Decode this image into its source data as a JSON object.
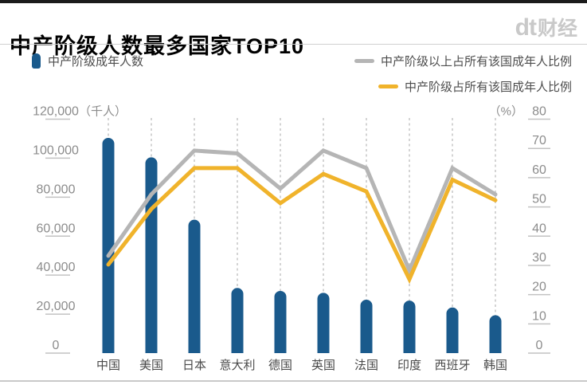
{
  "page": {
    "background": "#ffffff",
    "top_bar_color": "#1b1b1b"
  },
  "header": {
    "title": "中产阶级人数最多国家TOP10",
    "logo_dt": "dt",
    "logo_cn": "财经",
    "logo_color": "#c9c9c9"
  },
  "legend": {
    "bar_item": {
      "label": "中产阶级成年人数",
      "color": "#1a5a8c"
    },
    "line_items": [
      {
        "label": "中产阶级以上占所有该国成年人比例",
        "color": "#b5b5b5"
      },
      {
        "label": "中产阶级占所有该国成年人比例",
        "color": "#f0b32b"
      }
    ]
  },
  "chart_data": {
    "type": "bar",
    "title": "中产阶级人数最多国家TOP10",
    "categories": [
      "中国",
      "美国",
      "日本",
      "意大利",
      "德国",
      "英国",
      "法国",
      "印度",
      "西班牙",
      "韩国"
    ],
    "series": [
      {
        "name": "中产阶级成年人数",
        "type": "bar",
        "axis": "left",
        "unit": "千人",
        "color": "#1a5a8c",
        "values": [
          110000,
          100000,
          68000,
          33000,
          31500,
          30500,
          27000,
          26500,
          23000,
          19000
        ]
      },
      {
        "name": "中产阶级以上占所有该国成年人比例",
        "type": "line",
        "axis": "right",
        "unit": "%",
        "color": "#b5b5b5",
        "values": [
          33,
          54,
          69,
          68,
          56,
          69,
          63,
          28,
          63,
          54
        ]
      },
      {
        "name": "中产阶级占所有该国成年人比例",
        "type": "line",
        "axis": "right",
        "unit": "%",
        "color": "#f0b32b",
        "values": [
          30,
          49,
          63,
          63,
          51,
          61,
          55,
          25,
          59,
          52
        ]
      }
    ],
    "left_axis": {
      "min": 0,
      "max": 120000,
      "unit_label": "（千人）",
      "ticks": [
        "120,000",
        "100,000",
        "80,000",
        "60,000",
        "40,000",
        "20,000",
        "0"
      ]
    },
    "right_axis": {
      "min": 0,
      "max": 80,
      "unit_label": "（%）",
      "ticks": [
        "80",
        "70",
        "60",
        "50",
        "40",
        "30",
        "20",
        "10",
        "0"
      ]
    },
    "grid": "dashed-vertical-per-category",
    "legend_position": "top",
    "colors": {
      "grid_dash": "#bcbcbc",
      "tick_line": "#c2c2c2",
      "axis_text": "#8c8c8c",
      "category_text": "#4a4a4a"
    }
  }
}
